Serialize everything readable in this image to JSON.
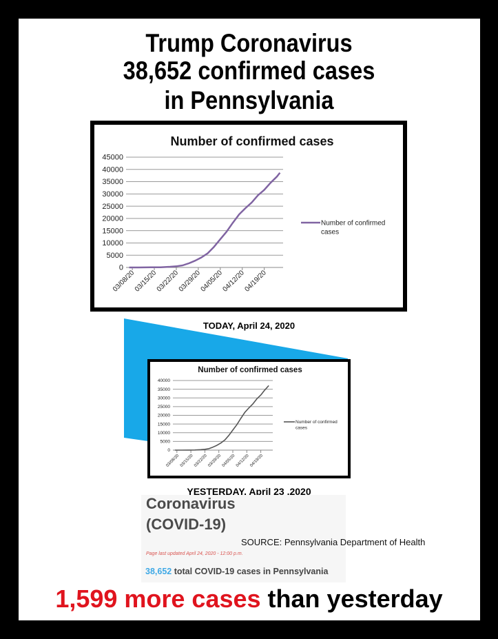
{
  "header": {
    "line1": "Trump Coronavirus",
    "line2": "38,652 confirmed cases",
    "line3": "in Pennsylvania"
  },
  "captions": {
    "today": "TODAY, April 24, 2020",
    "yesterday": "YESTERDAY. April 23 .2020"
  },
  "website": {
    "heading1": "Coronavirus",
    "heading2": "(COVID-19)",
    "updated": "Page last updated April 24, 2020 - 12:00 p.m.",
    "total_number": "38,652",
    "total_text": " total COVID-19 cases in Pennsylvania",
    "total_color": "#3fa9e6"
  },
  "source": "SOURCE: Pennsylvania Department of Health",
  "footer": {
    "highlight": "1,599 more cases",
    "rest": " than yesterday",
    "highlight_color": "#e0141e"
  },
  "accent_shape_color": "#18a8e8",
  "chart_data": [
    {
      "type": "line",
      "title": "Number of confirmed cases",
      "series": [
        {
          "name": "Number of confirmed cases",
          "color": "#8064a2"
        }
      ],
      "x": [
        "03/07/20",
        "03/10/20",
        "03/14/20",
        "03/17/20",
        "03/20/20",
        "03/22/20",
        "03/24/20",
        "03/26/20",
        "03/28/20",
        "03/30/20",
        "04/01/20",
        "04/03/20",
        "04/05/20",
        "04/07/20",
        "04/09/20",
        "04/11/20",
        "04/13/20",
        "04/15/20",
        "04/17/20",
        "04/19/20",
        "04/21/20",
        "04/23/20",
        "04/24/20"
      ],
      "values": [
        2,
        12,
        47,
        96,
        268,
        479,
        851,
        1687,
        2751,
        4087,
        5805,
        8420,
        11510,
        14559,
        18228,
        21655,
        24199,
        26490,
        29441,
        31652,
        34528,
        37053,
        38652
      ],
      "xticks": [
        "03/08/20",
        "03/15/20",
        "03/22/20",
        "03/29/20",
        "04/05/20",
        "04/12/20",
        "04/19/20"
      ],
      "yticks": [
        "0",
        "5000",
        "10000",
        "15000",
        "20000",
        "25000",
        "30000",
        "35000",
        "40000",
        "45000"
      ],
      "ylim": [
        0,
        45000
      ],
      "grid": true,
      "legend": "right"
    },
    {
      "type": "line",
      "title": "Number of confirmed cases",
      "series": [
        {
          "name": "Number of confirmed cases",
          "color": "#555555"
        }
      ],
      "x": [
        "03/07/20",
        "03/10/20",
        "03/14/20",
        "03/17/20",
        "03/20/20",
        "03/22/20",
        "03/24/20",
        "03/26/20",
        "03/28/20",
        "03/30/20",
        "04/01/20",
        "04/03/20",
        "04/05/20",
        "04/07/20",
        "04/09/20",
        "04/11/20",
        "04/13/20",
        "04/15/20",
        "04/17/20",
        "04/19/20",
        "04/21/20",
        "04/23/20"
      ],
      "values": [
        2,
        12,
        47,
        96,
        268,
        479,
        851,
        1687,
        2751,
        4087,
        5805,
        8420,
        11510,
        14559,
        18228,
        21655,
        24199,
        26490,
        29441,
        31652,
        34528,
        37053
      ],
      "xticks": [
        "03/08/20",
        "03/15/20",
        "03/22/20",
        "03/29/20",
        "04/05/20",
        "04/12/20",
        "04/19/20"
      ],
      "yticks": [
        "0",
        "5000",
        "10000",
        "15000",
        "20000",
        "25000",
        "30000",
        "35000",
        "40000"
      ],
      "ylim": [
        0,
        40000
      ],
      "grid": true,
      "legend": "right"
    }
  ]
}
